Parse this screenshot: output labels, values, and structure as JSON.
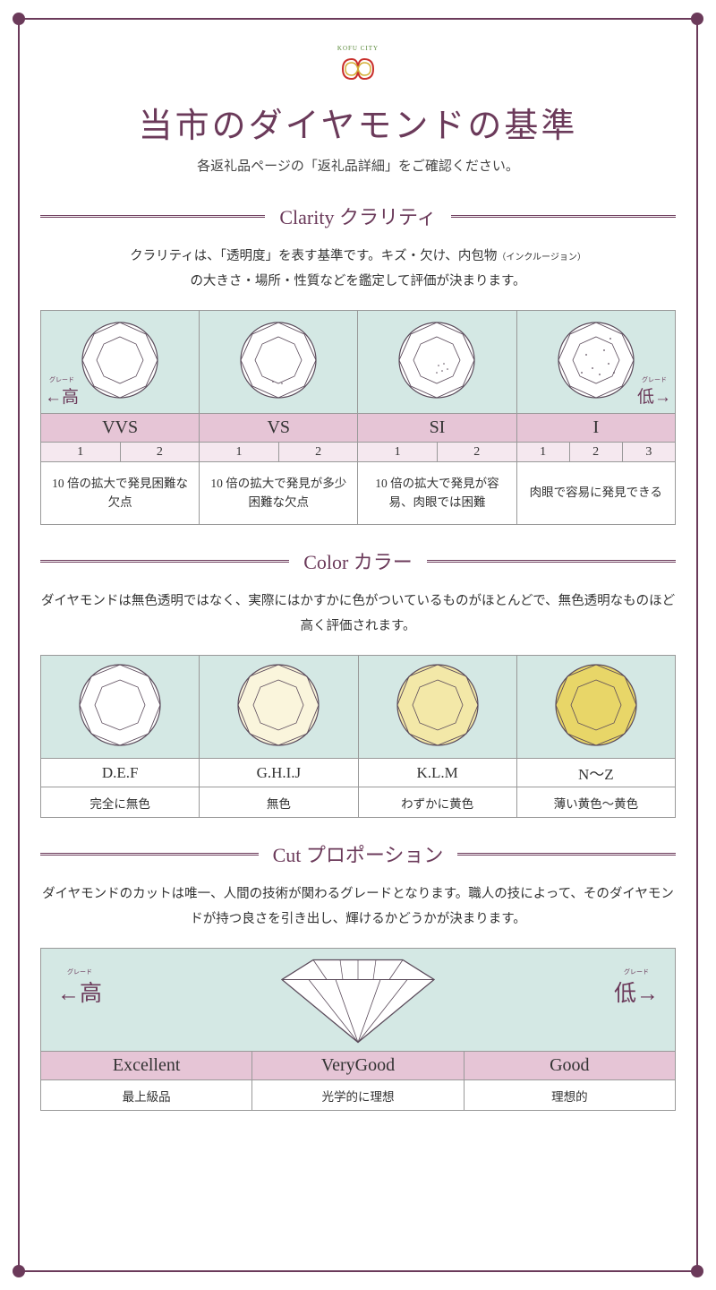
{
  "logo_text": "KOFU CITY",
  "title": "当市のダイヤモンドの基準",
  "subtitle": "各返礼品ページの「返礼品詳細」をご確認ください。",
  "colors": {
    "primary": "#6b3a5a",
    "mint": "#d4e8e4",
    "pink": "#e6c5d6",
    "lightpink": "#f5e8ef",
    "border": "#999999"
  },
  "clarity": {
    "heading": "Clarity クラリティ",
    "desc_1": "クラリティは、「透明度」を表す基準です。キズ・欠け、内包物",
    "desc_small": "（インクルージョン）",
    "desc_2": "の大きさ・場所・性質などを鑑定して評価が決まります。",
    "grade_high": "←高",
    "grade_low": "低→",
    "grade_ruby": "グレード",
    "grades": [
      "VVS",
      "VS",
      "SI",
      "I"
    ],
    "subs_vvs": [
      "1",
      "2"
    ],
    "subs_vs": [
      "1",
      "2"
    ],
    "subs_si": [
      "1",
      "2"
    ],
    "subs_i": [
      "1",
      "2",
      "3"
    ],
    "text_vvs": "10 倍の拡大で発見困難な欠点",
    "text_vs": "10 倍の拡大で発見が多少困難な欠点",
    "text_si": "10 倍の拡大で発見が容易、肉眼では困難",
    "text_i": "肉眼で容易に発見できる"
  },
  "color": {
    "heading": "Color カラー",
    "desc": "ダイヤモンドは無色透明ではなく、実際にはかすかに色がついているものがほとんどで、無色透明なものほど高く評価されます。",
    "fills": [
      "#ffffff",
      "#faf5dc",
      "#f3e8a8",
      "#e8d668"
    ],
    "labels": [
      "D.E.F",
      "G.H.I.J",
      "K.L.M",
      "N～Z"
    ],
    "descs": [
      "完全に無色",
      "無色",
      "わずかに黄色",
      "薄い黄色～黄色"
    ]
  },
  "cut": {
    "heading": "Cut プロポーション",
    "desc": "ダイヤモンドのカットは唯一、人間の技術が関わるグレードとなります。職人の技によって、そのダイヤモンドが持つ良さを引き出し、輝けるかどうかが決まります。",
    "grade_high": "←高",
    "grade_low": "低→",
    "grade_ruby": "グレード",
    "labels": [
      "Excellent",
      "VeryGood",
      "Good"
    ],
    "descs": [
      "最上級品",
      "光学的に理想",
      "理想的"
    ]
  }
}
